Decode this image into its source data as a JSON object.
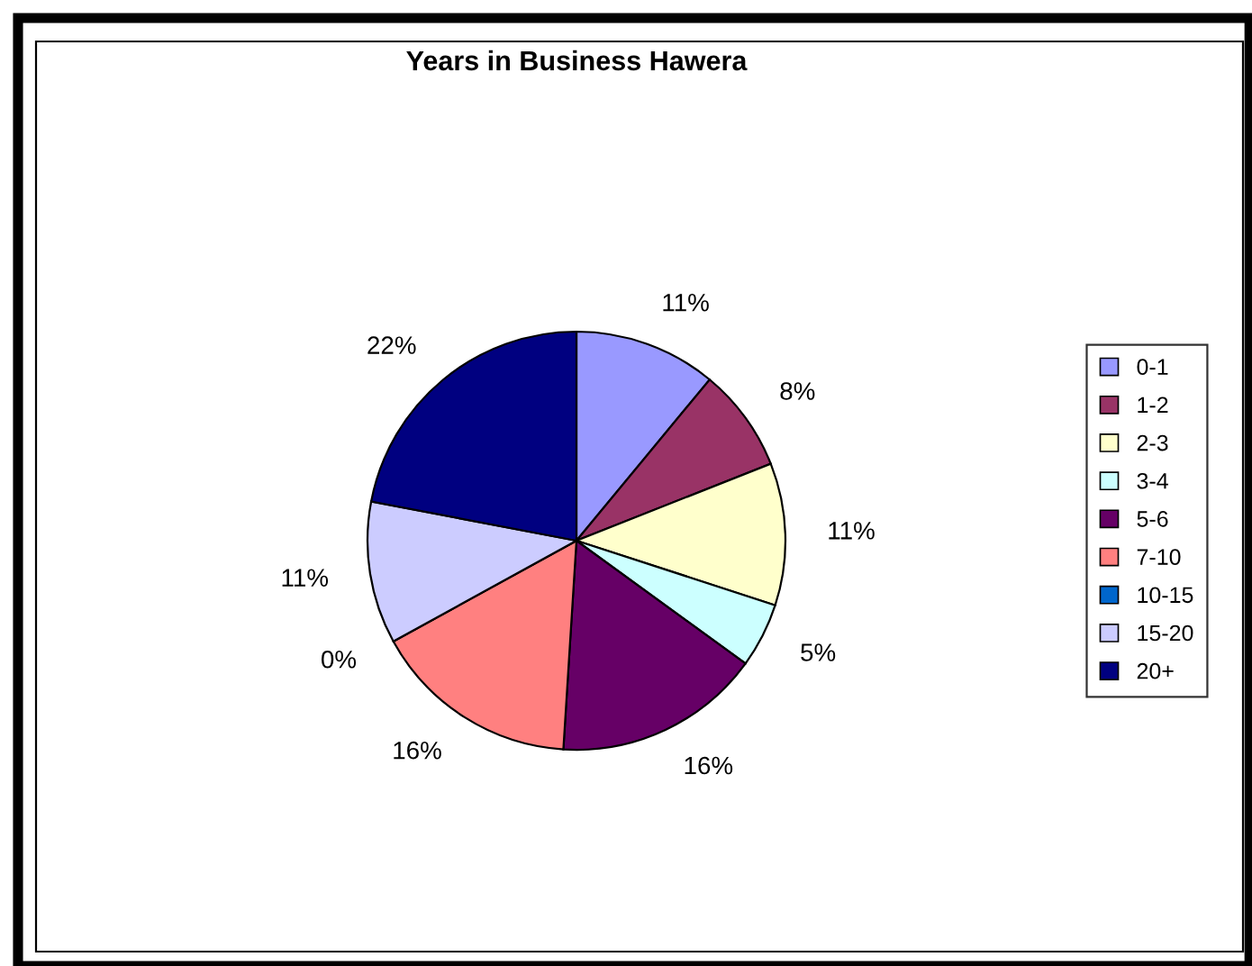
{
  "chart_data": {
    "type": "pie",
    "title": "Years in Business Hawera",
    "categories": [
      "0-1",
      "1-2",
      "2-3",
      "3-4",
      "5-6",
      "7-10",
      "10-15",
      "15-20",
      "20+"
    ],
    "values": [
      11,
      8,
      11,
      5,
      16,
      16,
      0,
      11,
      22
    ],
    "colors": [
      "#9999ff",
      "#993366",
      "#ffffcc",
      "#ccffff",
      "#660066",
      "#ff8080",
      "#0066cc",
      "#ccccff",
      "#000080"
    ],
    "value_labels": [
      "11%",
      "8%",
      "11%",
      "5%",
      "16%",
      "16%",
      "0%",
      "11%",
      "22%"
    ],
    "legend": "right"
  }
}
